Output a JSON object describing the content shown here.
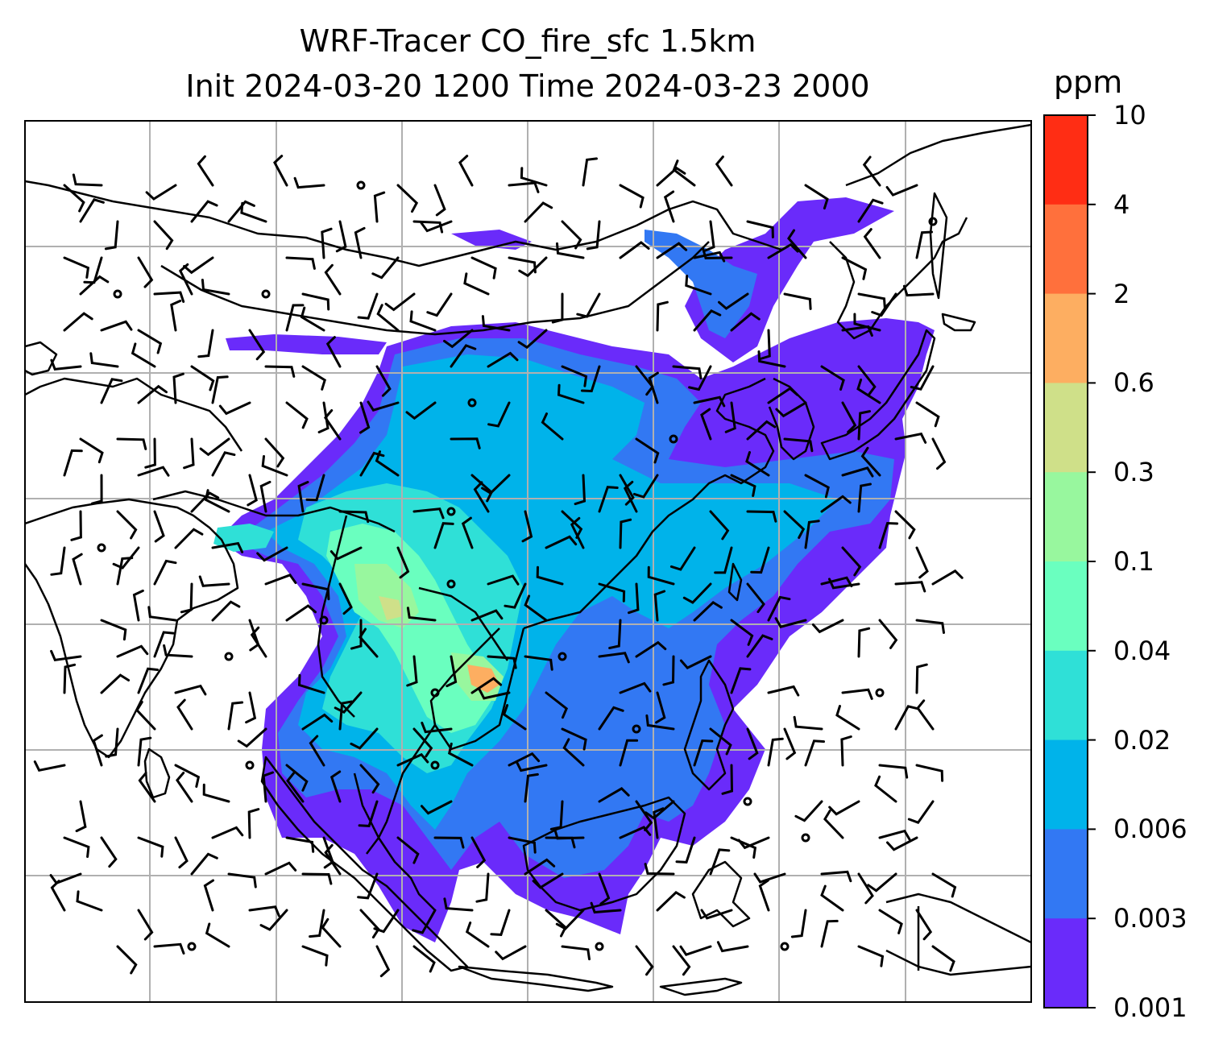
{
  "title": {
    "line1": "WRF-Tracer CO_fire_sfc 1.5km",
    "line2": "Init 2024-03-20 1200 Time 2024-03-23 2000"
  },
  "colorbar": {
    "unit": "ppm",
    "ticks": [
      "10",
      "4",
      "2",
      "0.6",
      "0.3",
      "0.1",
      "0.04",
      "0.02",
      "0.006",
      "0.003",
      "0.001"
    ],
    "colors": [
      "#ff2d14",
      "#ff703c",
      "#fdae61",
      "#cfe089",
      "#98f79e",
      "#6affbf",
      "#2fe0d7",
      "#00b3ea",
      "#3278f3",
      "#6a2bfa"
    ]
  },
  "map": {
    "gridlines": true,
    "field_legend": "CO_fire_sfc",
    "coast_color": "#000000",
    "barb_color": "#000000"
  }
}
